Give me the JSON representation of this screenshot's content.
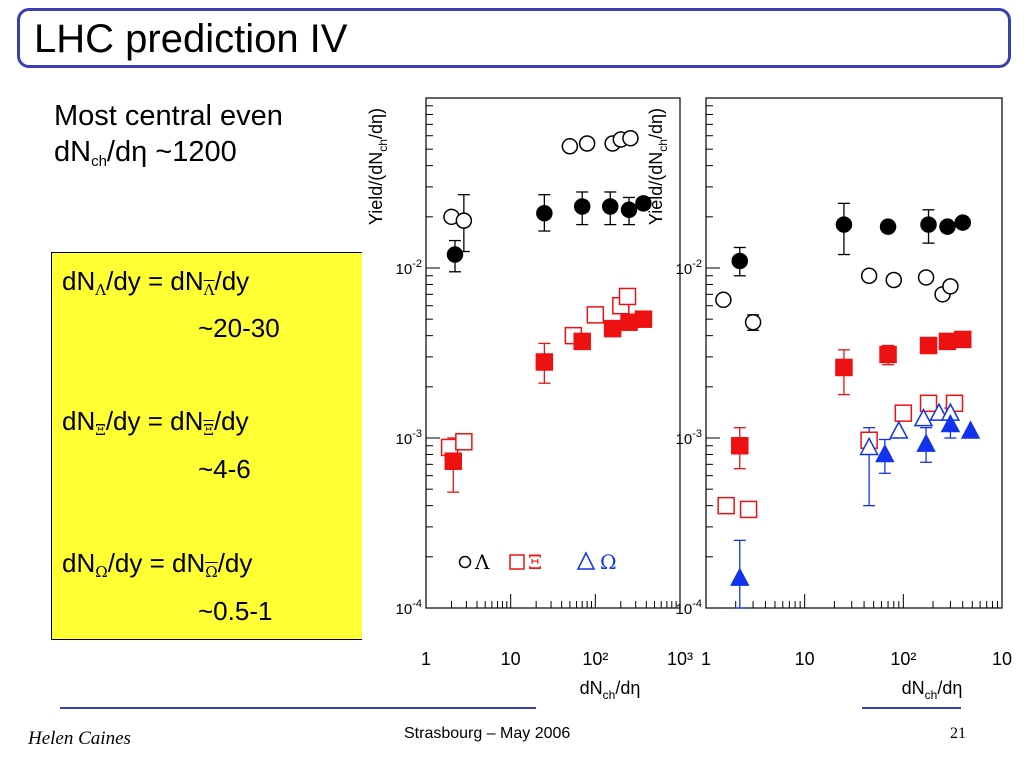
{
  "slide": {
    "title": "LHC prediction IV",
    "intro": {
      "line1": "Most central even",
      "line2_main": "dN",
      "line2_sub": "ch",
      "line2_rest": "/dη ~1200"
    },
    "box": {
      "lambda": {
        "a": "dN",
        "sub1": "Λ",
        "b": "/dy = dN",
        "sub2": "Λ",
        "c": "/dy",
        "value": "~20-30"
      },
      "xi": {
        "a": "dN",
        "sub1": "Ξ",
        "b": "/dy = dN",
        "sub2": "Ξ",
        "c": "/dy",
        "value": "~4-6"
      },
      "omega": {
        "a": "dN",
        "sub1": "Ω",
        "b": "/dy = dN",
        "sub2": "Ω",
        "c": "/dy",
        "value": "~0.5-1"
      }
    },
    "footer": {
      "author": "Helen Caines",
      "event": "Strasbourg  –  May 2006",
      "page": "21"
    }
  },
  "colors": {
    "accent": "#3a3fb0",
    "box_fill": "#ffff33",
    "red": "#ee1111",
    "blue": "#1133ee",
    "black": "#000000"
  },
  "chart_data": [
    {
      "type": "scatter",
      "xlabel": "dN",
      "xlabel_sub": "ch",
      "xlabel_rest": "/dη",
      "ylabel": "Yield/(dN",
      "ylabel_sub": "ch",
      "ylabel_rest": "/dη)",
      "x_scale": "log",
      "y_scale": "log",
      "xlim": [
        1,
        1000
      ],
      "ylim": [
        0.0001,
        0.1
      ],
      "ytick_labels": [
        {
          "mantissa": "10",
          "exp": "-2"
        },
        {
          "mantissa": "10",
          "exp": "-3"
        },
        {
          "mantissa": "10",
          "exp": "-4"
        }
      ],
      "xtick_labels": [
        "1",
        "10",
        "10²",
        "10³"
      ],
      "legend": {
        "items": [
          "Λ",
          "Ξ",
          "Ω"
        ]
      },
      "series": [
        {
          "marker": "open-circle",
          "color": "#000000",
          "points": [
            [
              2.0,
              0.02
            ],
            [
              2.8,
              0.019
            ],
            [
              50,
              0.052
            ],
            [
              80,
              0.054
            ],
            [
              160,
              0.054
            ],
            [
              200,
              0.057
            ],
            [
              260,
              0.058
            ]
          ]
        },
        {
          "marker": "filled-circle",
          "color": "#000000",
          "points": [
            [
              2.2,
              0.012
            ],
            [
              25,
              0.021
            ],
            [
              70,
              0.023
            ],
            [
              150,
              0.023
            ],
            [
              250,
              0.022
            ],
            [
              370,
              0.024
            ]
          ]
        },
        {
          "marker": "open-square",
          "color": "#ee1111",
          "points": [
            [
              1.9,
              0.00088
            ],
            [
              2.8,
              0.00095
            ],
            [
              55,
              0.004
            ],
            [
              100,
              0.0053
            ],
            [
              200,
              0.006
            ],
            [
              240,
              0.0068
            ]
          ]
        },
        {
          "marker": "filled-square",
          "color": "#ee1111",
          "points": [
            [
              2.1,
              0.00073
            ],
            [
              25,
              0.0028
            ],
            [
              70,
              0.0037
            ],
            [
              160,
              0.0044
            ],
            [
              250,
              0.0048
            ],
            [
              370,
              0.005
            ]
          ]
        }
      ],
      "error_bars": [
        {
          "x": 2.2,
          "y_low": 0.0095,
          "y_high": 0.0145,
          "color": "#000000"
        },
        {
          "x": 2.8,
          "y_low": 0.0125,
          "y_high": 0.027,
          "color": "#000000"
        },
        {
          "x": 25,
          "y_low": 0.0165,
          "y_high": 0.027,
          "color": "#000000"
        },
        {
          "x": 70,
          "y_low": 0.018,
          "y_high": 0.028,
          "color": "#000000"
        },
        {
          "x": 150,
          "y_low": 0.018,
          "y_high": 0.028,
          "color": "#000000"
        },
        {
          "x": 250,
          "y_low": 0.018,
          "y_high": 0.026,
          "color": "#000000"
        },
        {
          "x": 2.1,
          "y_low": 0.00048,
          "y_high": 0.001,
          "color": "#ee1111"
        },
        {
          "x": 25,
          "y_low": 0.0021,
          "y_high": 0.0036,
          "color": "#ee1111"
        }
      ]
    },
    {
      "type": "scatter",
      "xlabel": "dN",
      "xlabel_sub": "ch",
      "xlabel_rest": "/dη",
      "ylabel": "Yield/(dN",
      "ylabel_sub": "ch",
      "ylabel_rest": "/dη)",
      "x_scale": "log",
      "y_scale": "log",
      "xlim": [
        1,
        1000
      ],
      "ylim": [
        0.0001,
        0.1
      ],
      "ytick_labels": [
        {
          "mantissa": "10",
          "exp": "-2"
        },
        {
          "mantissa": "10",
          "exp": "-3"
        },
        {
          "mantissa": "10",
          "exp": "-4"
        }
      ],
      "xtick_labels": [
        "1",
        "10",
        "10²",
        "10"
      ],
      "series": [
        {
          "marker": "filled-circle",
          "color": "#000000",
          "points": [
            [
              2.2,
              0.011
            ],
            [
              25,
              0.018
            ],
            [
              70,
              0.0175
            ],
            [
              180,
              0.018
            ],
            [
              280,
              0.0175
            ],
            [
              400,
              0.0185
            ]
          ]
        },
        {
          "marker": "open-circle",
          "color": "#000000",
          "points": [
            [
              1.5,
              0.0065
            ],
            [
              3.0,
              0.0048
            ],
            [
              45,
              0.009
            ],
            [
              80,
              0.0085
            ],
            [
              170,
              0.0088
            ],
            [
              250,
              0.007
            ],
            [
              300,
              0.0078
            ]
          ]
        },
        {
          "marker": "filled-square",
          "color": "#ee1111",
          "points": [
            [
              2.2,
              0.0009
            ],
            [
              25,
              0.0026
            ],
            [
              70,
              0.0031
            ],
            [
              180,
              0.0035
            ],
            [
              280,
              0.0037
            ],
            [
              400,
              0.0038
            ]
          ]
        },
        {
          "marker": "open-square",
          "color": "#ee1111",
          "points": [
            [
              1.6,
              0.0004
            ],
            [
              2.7,
              0.00038
            ],
            [
              45,
              0.00097
            ],
            [
              100,
              0.0014
            ],
            [
              180,
              0.0016
            ],
            [
              330,
              0.0016
            ]
          ]
        },
        {
          "marker": "open-triangle",
          "color": "#1133ee",
          "points": [
            [
              45,
              0.00088
            ],
            [
              90,
              0.0011
            ],
            [
              160,
              0.0013
            ],
            [
              230,
              0.0014
            ],
            [
              300,
              0.0014
            ]
          ]
        },
        {
          "marker": "filled-triangle",
          "color": "#1133ee",
          "points": [
            [
              2.2,
              0.00015
            ],
            [
              65,
              0.0008
            ],
            [
              170,
              0.00092
            ],
            [
              300,
              0.0012
            ],
            [
              480,
              0.0011
            ]
          ]
        }
      ],
      "error_bars": [
        {
          "x": 2.2,
          "y_low": 0.009,
          "y_high": 0.0132,
          "color": "#000000"
        },
        {
          "x": 25,
          "y_low": 0.012,
          "y_high": 0.024,
          "color": "#000000"
        },
        {
          "x": 180,
          "y_low": 0.014,
          "y_high": 0.022,
          "color": "#000000"
        },
        {
          "x": 3.0,
          "y_low": 0.0043,
          "y_high": 0.0053,
          "color": "#000000"
        },
        {
          "x": 2.2,
          "y_low": 0.00066,
          "y_high": 0.00115,
          "color": "#ee1111"
        },
        {
          "x": 25,
          "y_low": 0.0018,
          "y_high": 0.0033,
          "color": "#ee1111"
        },
        {
          "x": 70,
          "y_low": 0.0027,
          "y_high": 0.0035,
          "color": "#ee1111"
        },
        {
          "x": 2.2,
          "y_low": 0.0001,
          "y_high": 0.00025,
          "color": "#1133ee"
        },
        {
          "x": 45,
          "y_low": 0.0004,
          "y_high": 0.00115,
          "color": "#1133ee"
        },
        {
          "x": 65,
          "y_low": 0.00062,
          "y_high": 0.00098,
          "color": "#1133ee"
        },
        {
          "x": 170,
          "y_low": 0.00072,
          "y_high": 0.00115,
          "color": "#1133ee"
        },
        {
          "x": 300,
          "y_low": 0.001,
          "y_high": 0.0015,
          "color": "#1133ee"
        }
      ]
    }
  ]
}
